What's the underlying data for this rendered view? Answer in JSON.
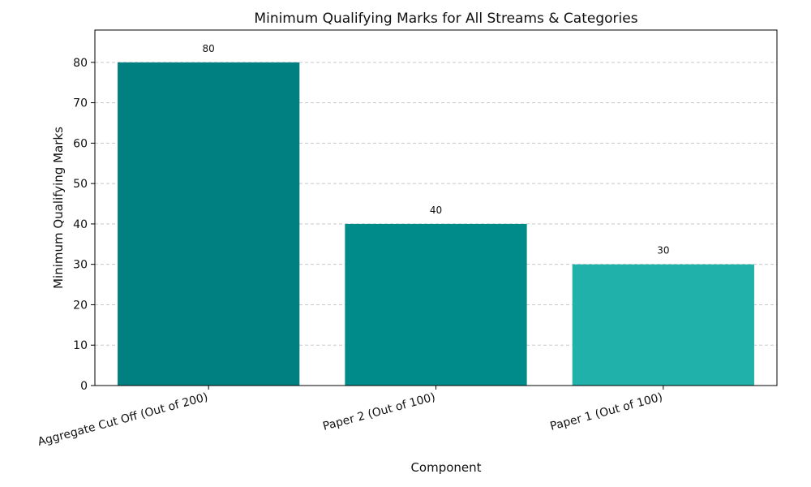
{
  "chart_data": {
    "type": "bar",
    "title": "Minimum Qualifying Marks for All Streams & Categories",
    "xlabel": "Component",
    "ylabel": "Minimum Qualifying Marks",
    "categories": [
      "Aggregate Cut Off (Out of 200)",
      "Paper 2 (Out of 100)",
      "Paper 1 (Out of 100)"
    ],
    "values": [
      80,
      40,
      30
    ],
    "colors": [
      "#008080",
      "#008b8b",
      "#20b2aa"
    ],
    "ylim": [
      0,
      88
    ],
    "yticks": [
      0,
      10,
      20,
      30,
      40,
      50,
      60,
      70,
      80
    ],
    "grid": true,
    "grid_axis": "y"
  }
}
